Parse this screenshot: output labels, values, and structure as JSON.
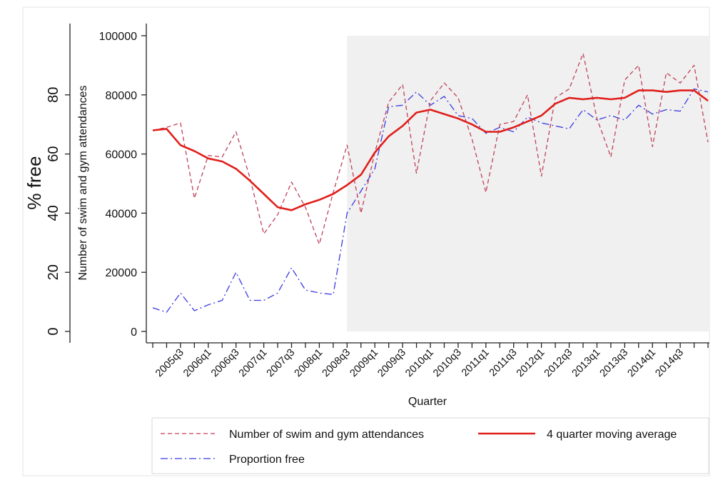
{
  "chart_data": {
    "type": "line",
    "xlabel": "Quarter",
    "ylabel_left": "Number of swim and gym attendances",
    "ylabel_outer": "% free",
    "x_tick_labels": [
      "2005q3",
      "2006q1",
      "2006q3",
      "2007q1",
      "2007q3",
      "2008q1",
      "2008q3",
      "2009q1",
      "2009q3",
      "2010q1",
      "2010q3",
      "2011q1",
      "2011q3",
      "2012q1",
      "2012q3",
      "2013q1",
      "2013q3",
      "2014q1",
      "2014q3"
    ],
    "y_ticks_attendances": [
      0,
      20000,
      40000,
      60000,
      80000,
      100000
    ],
    "y_ticks_percent": [
      0,
      20,
      40,
      60,
      80
    ],
    "ylim_attendances": [
      0,
      100000
    ],
    "ylim_percent": [
      0,
      100
    ],
    "shaded_region": {
      "from": "2008q3",
      "to": "2015q1"
    },
    "x": [
      "2005q1",
      "2005q2",
      "2005q3",
      "2005q4",
      "2006q1",
      "2006q2",
      "2006q3",
      "2006q4",
      "2007q1",
      "2007q2",
      "2007q3",
      "2007q4",
      "2008q1",
      "2008q2",
      "2008q3",
      "2008q4",
      "2009q1",
      "2009q2",
      "2009q3",
      "2009q4",
      "2010q1",
      "2010q2",
      "2010q3",
      "2010q4",
      "2011q1",
      "2011q2",
      "2011q3",
      "2011q4",
      "2012q1",
      "2012q2",
      "2012q3",
      "2012q4",
      "2013q1",
      "2013q2",
      "2013q3",
      "2013q4",
      "2014q1",
      "2014q2",
      "2014q3",
      "2014q4",
      "2015q1"
    ],
    "series": [
      {
        "name": "Number of swim and gym attendances",
        "axis": "left",
        "color": "#c0405a",
        "dash": "dashed",
        "values": [
          68000,
          69000,
          70500,
          45000,
          59500,
          59000,
          67500,
          52000,
          33000,
          39500,
          50500,
          42000,
          29500,
          47000,
          63000,
          40000,
          60500,
          77500,
          83500,
          53500,
          78000,
          84000,
          79000,
          65000,
          47000,
          70000,
          71000,
          80000,
          52500,
          79000,
          82000,
          94000,
          72000,
          59000,
          85000,
          90000,
          62500,
          87500,
          84000,
          90000,
          64000
        ]
      },
      {
        "name": "4 quarter  moving average",
        "axis": "left",
        "color": "#e0201c",
        "dash": "solid",
        "values": [
          68000,
          68500,
          63000,
          61000,
          58500,
          57500,
          55000,
          51000,
          46500,
          42000,
          41000,
          43000,
          44500,
          46500,
          49500,
          53000,
          60500,
          66000,
          69500,
          74000,
          75000,
          73500,
          72000,
          70000,
          67500,
          67500,
          69000,
          71000,
          73000,
          77000,
          79000,
          78500,
          79000,
          78500,
          79000,
          81500,
          81500,
          81000,
          81500,
          81500,
          78000
        ]
      },
      {
        "name": "Proportion free",
        "axis": "right",
        "color": "#3a3ae0",
        "dash": "dashdot",
        "values": [
          8,
          6.5,
          13,
          7,
          9,
          10.5,
          20,
          10.5,
          10.5,
          13,
          21.5,
          14,
          13,
          12.5,
          40,
          47.5,
          55,
          76,
          76.5,
          81,
          76.5,
          79.5,
          73,
          72,
          67,
          69,
          67.5,
          72.5,
          70.5,
          69.5,
          68.5,
          75,
          71.5,
          73,
          71.5,
          76.5,
          73.5,
          75,
          74.5,
          82,
          81
        ]
      }
    ],
    "legend": {
      "placement": "bottom",
      "entries": [
        {
          "label": "Number of swim and gym attendances",
          "style": "dashed",
          "color": "#c0405a"
        },
        {
          "label": "4 quarter  moving average",
          "style": "solid",
          "color": "#e0201c"
        },
        {
          "label": "Proportion free",
          "style": "dashdot",
          "color": "#3a3ae0"
        }
      ]
    },
    "grid": false,
    "colors": {
      "shade": "#f0f0f0",
      "frame": "#e6e6e6",
      "legend_border": "#d8d8d8"
    }
  }
}
